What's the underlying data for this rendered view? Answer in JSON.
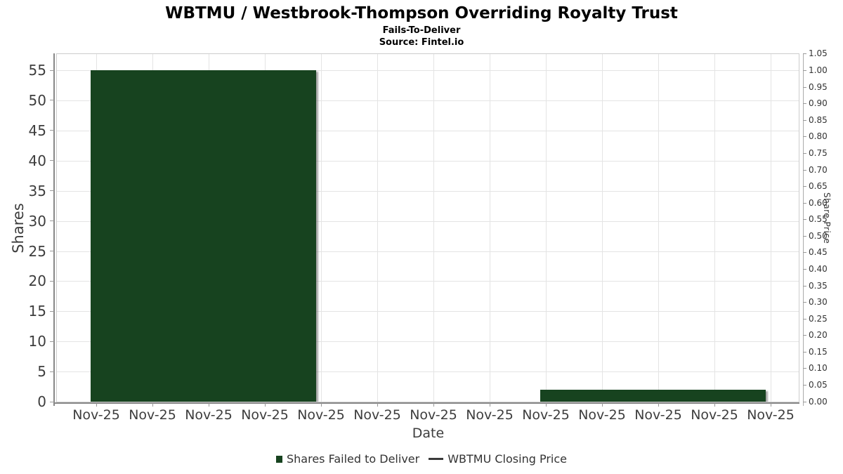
{
  "chart": {
    "title": "WBTMU / Westbrook-Thompson Overriding Royalty Trust",
    "subtitle": "Fails-To-Deliver",
    "source": "Source: Fintel.io"
  },
  "chart_data": {
    "type": "bar",
    "title": "WBTMU / Westbrook-Thompson Overriding Royalty Trust",
    "subtitle": "Fails-To-Deliver",
    "source": "Source: Fintel.io",
    "xlabel": "Date",
    "ylabel_left": "Shares",
    "ylabel_right": "Share Price",
    "grid": true,
    "legend_position": "bottom",
    "x_tick_labels": [
      "Nov-25",
      "Nov-25",
      "Nov-25",
      "Nov-25",
      "Nov-25",
      "Nov-25",
      "Nov-25",
      "Nov-25",
      "Nov-25",
      "Nov-25",
      "Nov-25",
      "Nov-25",
      "Nov-25"
    ],
    "y_left_ticks": [
      0,
      5,
      10,
      15,
      20,
      25,
      30,
      35,
      40,
      45,
      50,
      55
    ],
    "y_right_tick_labels": [
      "0.00",
      "0.05",
      "0.10",
      "0.15",
      "0.20",
      "0.25",
      "0.30",
      "0.35",
      "0.40",
      "0.45",
      "0.50",
      "0.55",
      "0.60",
      "0.65",
      "0.70",
      "0.75",
      "0.80",
      "0.85",
      "0.90",
      "0.95",
      "1.00",
      "1.05"
    ],
    "ylim_left": [
      0,
      57.8
    ],
    "ylim_right": [
      0,
      1.052
    ],
    "series": [
      {
        "name": "Shares Failed to Deliver",
        "type": "bar",
        "color": "#17431f",
        "points": [
          {
            "x_label": "Nov-25",
            "tick_start": 0,
            "tick_end": 4,
            "value": 55
          },
          {
            "x_label": "Nov-25",
            "tick_start": 8,
            "tick_end": 12,
            "value": 2
          }
        ]
      },
      {
        "name": "WBTMU Closing Price",
        "type": "line",
        "color": "#3a3a3a",
        "points": []
      }
    ]
  },
  "colors": {
    "bar_fill": "#17431f",
    "grid": "#e4e4e4",
    "plot_border": "#cccccc",
    "axis_line": "#888888",
    "tick": "#999999",
    "text_dark": "#3d3d3d",
    "legend_text": "#333333"
  }
}
